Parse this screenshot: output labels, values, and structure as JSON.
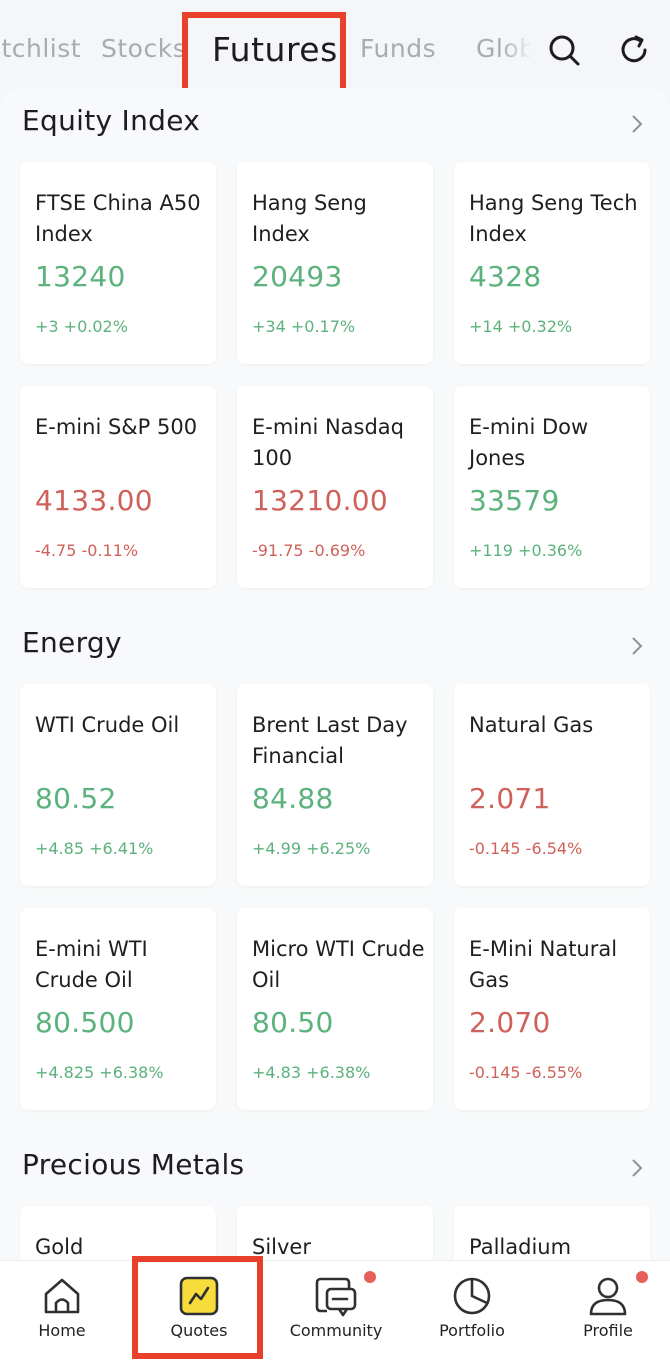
{
  "tabs": [
    {
      "label": "Watchlist",
      "active": false
    },
    {
      "label": "Stocks",
      "active": false
    },
    {
      "label": "Futures",
      "active": true
    },
    {
      "label": "Funds",
      "active": false
    },
    {
      "label": "Global",
      "active": false
    }
  ],
  "top_icons": [
    "search-icon",
    "refresh-icon"
  ],
  "sections": [
    {
      "title": "Equity Index",
      "cards": [
        {
          "name": "FTSE China A50 Index",
          "price": "13240",
          "change": "+3 +0.02%",
          "direction": "up"
        },
        {
          "name": "Hang Seng Index",
          "price": "20493",
          "change": "+34 +0.17%",
          "direction": "up"
        },
        {
          "name": "Hang Seng Tech Index",
          "price": "4328",
          "change": "+14 +0.32%",
          "direction": "up"
        },
        {
          "name": "E-mini S&P 500",
          "price": "4133.00",
          "change": "-4.75 -0.11%",
          "direction": "down"
        },
        {
          "name": "E-mini Nasdaq 100",
          "price": "13210.00",
          "change": "-91.75 -0.69%",
          "direction": "down"
        },
        {
          "name": "E-mini Dow Jones",
          "price": "33579",
          "change": "+119 +0.36%",
          "direction": "up"
        }
      ]
    },
    {
      "title": "Energy",
      "cards": [
        {
          "name": "WTI Crude Oil",
          "price": "80.52",
          "change": "+4.85 +6.41%",
          "direction": "up"
        },
        {
          "name": "Brent Last Day Financial",
          "price": "84.88",
          "change": "+4.99 +6.25%",
          "direction": "up"
        },
        {
          "name": "Natural Gas",
          "price": "2.071",
          "change": "-0.145 -6.54%",
          "direction": "down"
        },
        {
          "name": "E-mini WTI Crude Oil",
          "price": "80.500",
          "change": "+4.825 +6.38%",
          "direction": "up"
        },
        {
          "name": "Micro WTI Crude Oil",
          "price": "80.50",
          "change": "+4.83 +6.38%",
          "direction": "up"
        },
        {
          "name": "E-Mini Natural Gas",
          "price": "2.070",
          "change": "-0.145 -6.55%",
          "direction": "down"
        }
      ]
    },
    {
      "title": "Precious Metals",
      "cards": [
        {
          "name": "Gold"
        },
        {
          "name": "Silver"
        },
        {
          "name": "Palladium"
        }
      ]
    }
  ],
  "bottom_nav": [
    {
      "label": "Home",
      "icon": "home-icon",
      "active": false,
      "badge": false
    },
    {
      "label": "Quotes",
      "icon": "quotes-icon",
      "active": true,
      "badge": false
    },
    {
      "label": "Community",
      "icon": "community-icon",
      "active": false,
      "badge": true
    },
    {
      "label": "Portfolio",
      "icon": "portfolio-icon",
      "active": false,
      "badge": false
    },
    {
      "label": "Profile",
      "icon": "profile-icon",
      "active": false,
      "badge": true
    }
  ],
  "colors": {
    "up": "#5cb27c",
    "down": "#d0615a",
    "highlight": "#e8402a",
    "quotes_accent": "#f7dc3c"
  }
}
